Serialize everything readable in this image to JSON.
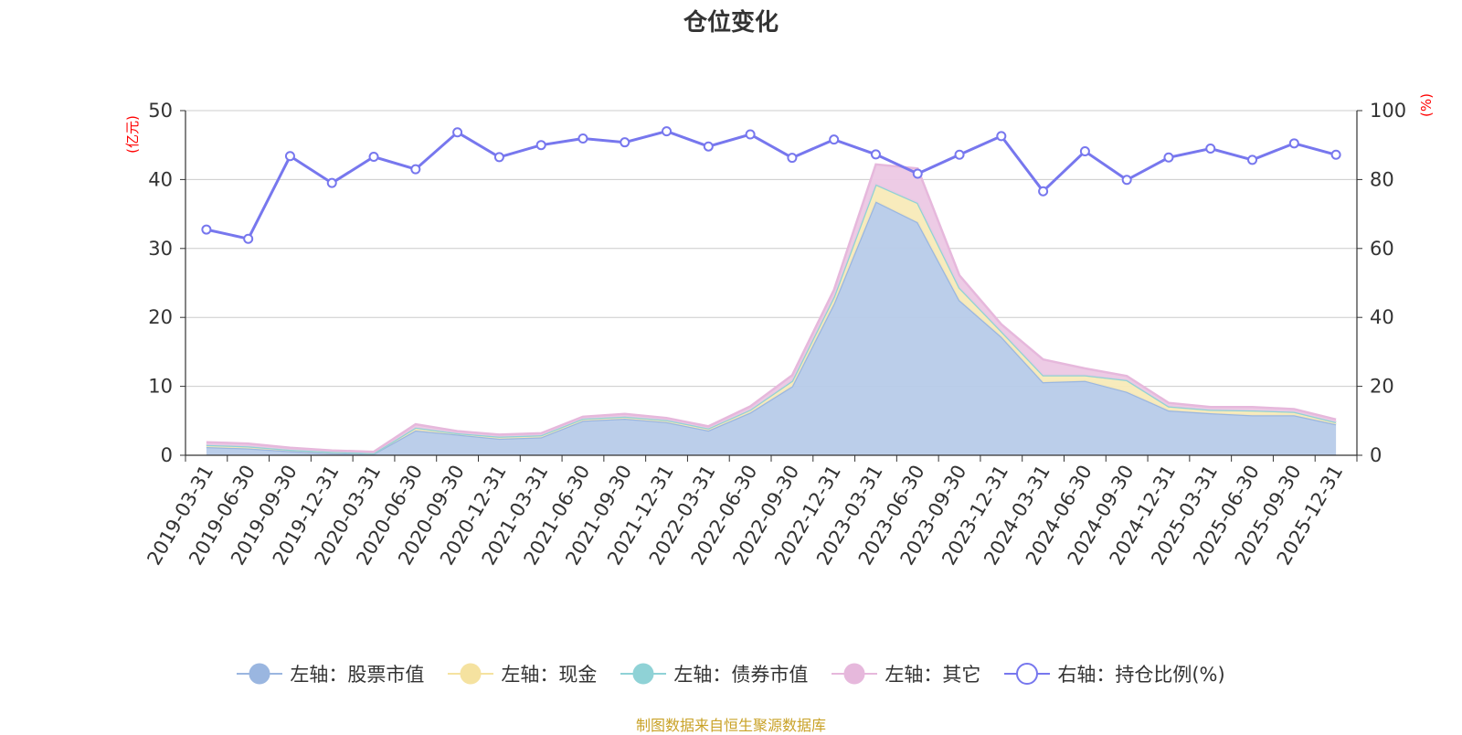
{
  "chart_data": {
    "type": "area",
    "title": "仓位变化",
    "left_axis": {
      "label": "(亿元)",
      "ylim": [
        0,
        50
      ],
      "ticks": [
        0,
        10,
        20,
        30,
        40,
        50
      ],
      "color": "#ff0000"
    },
    "right_axis": {
      "label": "(%)",
      "ylim": [
        0,
        100
      ],
      "ticks": [
        0,
        20,
        40,
        60,
        80,
        100
      ],
      "color": "#ff0000"
    },
    "categories": [
      "2019-03-31",
      "2019-06-30",
      "2019-09-30",
      "2019-12-31",
      "2020-03-31",
      "2020-06-30",
      "2020-09-30",
      "2020-12-31",
      "2021-03-31",
      "2021-06-30",
      "2021-09-30",
      "2021-12-31",
      "2022-03-31",
      "2022-06-30",
      "2022-09-30",
      "2022-12-31",
      "2023-03-31",
      "2023-06-30",
      "2023-09-30",
      "2023-12-31",
      "2024-03-31",
      "2024-06-30",
      "2024-09-30",
      "2024-12-31",
      "2025-03-31",
      "2025-06-30",
      "2025-09-30",
      "2025-12-31"
    ],
    "series": [
      {
        "name": "左轴：股票市值",
        "axis": "left",
        "stack": true,
        "color": "#9ab6e0",
        "fill": "#b7cbe9",
        "values": [
          1.2,
          1.0,
          0.6,
          0.3,
          0.2,
          3.6,
          3.0,
          2.4,
          2.6,
          5.0,
          5.3,
          4.8,
          3.6,
          6.2,
          10.0,
          22.0,
          36.8,
          33.8,
          22.5,
          17.2,
          10.6,
          10.8,
          9.2,
          6.5,
          6.1,
          5.8,
          5.8,
          4.5
        ]
      },
      {
        "name": "左轴：现金",
        "axis": "left",
        "stack": true,
        "color": "#f5e2a0",
        "fill": "#f8eab8",
        "values": [
          0.3,
          0.3,
          0.2,
          0.2,
          0.1,
          0.4,
          0.2,
          0.3,
          0.3,
          0.3,
          0.3,
          0.3,
          0.3,
          0.4,
          0.8,
          1.0,
          2.5,
          2.8,
          1.8,
          0.8,
          1.0,
          0.8,
          1.7,
          0.6,
          0.5,
          0.7,
          0.5,
          0.3
        ]
      },
      {
        "name": "左轴：债券市值",
        "axis": "left",
        "stack": true,
        "color": "#8fd2d6",
        "fill": "#b0e0e3",
        "values": [
          0,
          0,
          0,
          0,
          0,
          0,
          0,
          0,
          0,
          0,
          0,
          0,
          0,
          0,
          0,
          0,
          0,
          0,
          0,
          0,
          0,
          0,
          0,
          0,
          0,
          0,
          0,
          0
        ]
      },
      {
        "name": "左轴：其它",
        "axis": "left",
        "stack": true,
        "color": "#e6b8dc",
        "fill": "#ecc8e4",
        "values": [
          0.4,
          0.4,
          0.3,
          0.2,
          0.2,
          0.5,
          0.3,
          0.3,
          0.3,
          0.3,
          0.4,
          0.3,
          0.3,
          0.5,
          0.8,
          1.0,
          2.9,
          5.0,
          1.8,
          1.0,
          2.3,
          1.0,
          0.6,
          0.5,
          0.4,
          0.5,
          0.4,
          0.4
        ]
      },
      {
        "name": "右轴：持仓比例(%)",
        "axis": "right",
        "stack": false,
        "color": "#7777ee",
        "values": [
          65.5,
          62.8,
          86.8,
          79.0,
          86.6,
          83.0,
          93.7,
          86.5,
          90.0,
          91.9,
          90.8,
          94.0,
          89.6,
          93.1,
          86.3,
          91.6,
          87.3,
          81.7,
          87.2,
          92.6,
          76.6,
          88.2,
          79.9,
          86.4,
          89.0,
          85.7,
          90.5,
          87.2
        ]
      }
    ]
  },
  "source_text": "制图数据来自恒生聚源数据库"
}
